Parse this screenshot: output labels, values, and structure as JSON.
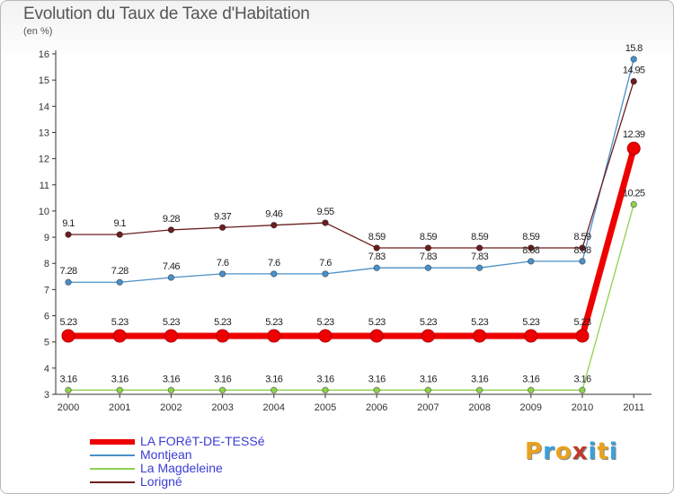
{
  "header": {
    "title": "Evolution du Taux de Taxe d'Habitation",
    "unit": "(en %)"
  },
  "logo": {
    "text": "Proxiti",
    "letter_colors": [
      "#e8a21c",
      "#3aa0d8",
      "#e8a21c",
      "#c0392b",
      "#3aa0d8",
      "#e8a21c",
      "#3aa0d8"
    ]
  },
  "chart_data": {
    "type": "line",
    "title": "Evolution du Taux de Taxe d'Habitation",
    "ylabel": "(en %)",
    "xlabel": "",
    "x": [
      "2000",
      "2001",
      "2002",
      "2003",
      "2004",
      "2005",
      "2006",
      "2007",
      "2008",
      "2009",
      "2010",
      "2011"
    ],
    "ylim": [
      3,
      16
    ],
    "yticks": [
      3,
      4,
      5,
      6,
      7,
      8,
      9,
      10,
      11,
      12,
      13,
      14,
      15,
      16
    ],
    "grid": false,
    "legend_position": "bottom-left",
    "series": [
      {
        "name": "LA FORêT-DE-TESSé",
        "color": "#ee0000",
        "values": [
          5.23,
          5.23,
          5.23,
          5.23,
          5.23,
          5.23,
          5.23,
          5.23,
          5.23,
          5.23,
          5.23,
          12.39
        ],
        "labels": [
          "5.23",
          "5.23",
          "5.23",
          "5.23",
          "5.23",
          "5.23",
          "5.23",
          "5.23",
          "5.23",
          "5.23",
          "5.23",
          "12.39"
        ]
      },
      {
        "name": "Montjean",
        "color": "#4a90c8",
        "values": [
          7.28,
          7.28,
          7.46,
          7.6,
          7.6,
          7.6,
          7.83,
          7.83,
          7.83,
          8.08,
          8.08,
          15.8
        ],
        "labels": [
          "7.28",
          "7.28",
          "7.46",
          "7.6",
          "7.6",
          "7.6",
          "7.83",
          "7.83",
          "7.83",
          "8.08",
          "8.08",
          "15.8"
        ]
      },
      {
        "name": "La Magdeleine",
        "color": "#8fd14f",
        "values": [
          3.16,
          3.16,
          3.16,
          3.16,
          3.16,
          3.16,
          3.16,
          3.16,
          3.16,
          3.16,
          3.16,
          10.25
        ],
        "labels": [
          "3.16",
          "3.16",
          "3.16",
          "3.16",
          "3.16",
          "3.16",
          "3.16",
          "3.16",
          "3.16",
          "3.16",
          "3.16",
          "10.25"
        ]
      },
      {
        "name": "Lorigné",
        "color": "#6b1f1f",
        "values": [
          9.1,
          9.1,
          9.28,
          9.37,
          9.46,
          9.55,
          8.59,
          8.59,
          8.59,
          8.59,
          8.59,
          14.95
        ],
        "labels": [
          "9.1",
          "9.1",
          "9.28",
          "9.37",
          "9.46",
          "9.55",
          "8.59",
          "8.59",
          "8.59",
          "8.59",
          "8.59",
          "14.95"
        ]
      }
    ]
  }
}
